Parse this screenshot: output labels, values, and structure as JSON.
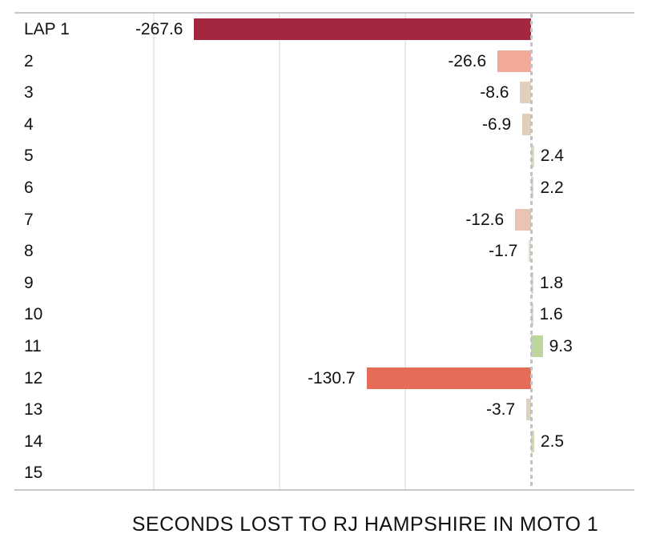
{
  "chart_data": {
    "type": "bar",
    "orientation": "horizontal",
    "title": "",
    "xlabel": "SECONDS LOST TO RJ HAMPSHIRE IN MOTO 1",
    "ylabel": "",
    "categories": [
      "LAP 1",
      "2",
      "3",
      "4",
      "5",
      "6",
      "7",
      "8",
      "9",
      "10",
      "11",
      "12",
      "13",
      "14",
      "15"
    ],
    "values": [
      -267.6,
      -26.6,
      -8.6,
      -6.9,
      2.4,
      2.2,
      -12.6,
      -1.7,
      1.8,
      1.6,
      9.3,
      -130.7,
      -3.7,
      2.5,
      0
    ],
    "value_labels": [
      "-267.6",
      "-26.6",
      "-8.6",
      "-6.9",
      "2.4",
      "2.2",
      "-12.6",
      "-1.7",
      "1.8",
      "1.6",
      "9.3",
      "-130.7",
      "-3.7",
      "2.5",
      ""
    ],
    "bar_colors": [
      "#a3273e",
      "#f4aa98",
      "#e3d0bc",
      "#e2cfbb",
      "#d3dfc2",
      "#d3dfc2",
      "#eac4b2",
      "#dddecc",
      "#d6e0c6",
      "#d6e0c6",
      "#bcd69c",
      "#e56c58",
      "#dbd3be",
      "#cddcb4",
      null
    ],
    "xlim": [
      -410.5,
      82.1
    ],
    "gridline_values": [
      -300,
      -200,
      -100
    ],
    "zero_line_value": 0,
    "grid_on": true,
    "legend": "none",
    "colors": {
      "border": "#c9c9c9",
      "gridline": "#ebebeb",
      "zero_line": "#c2c2c2",
      "text": "#111111",
      "background": "#ffffff"
    }
  }
}
